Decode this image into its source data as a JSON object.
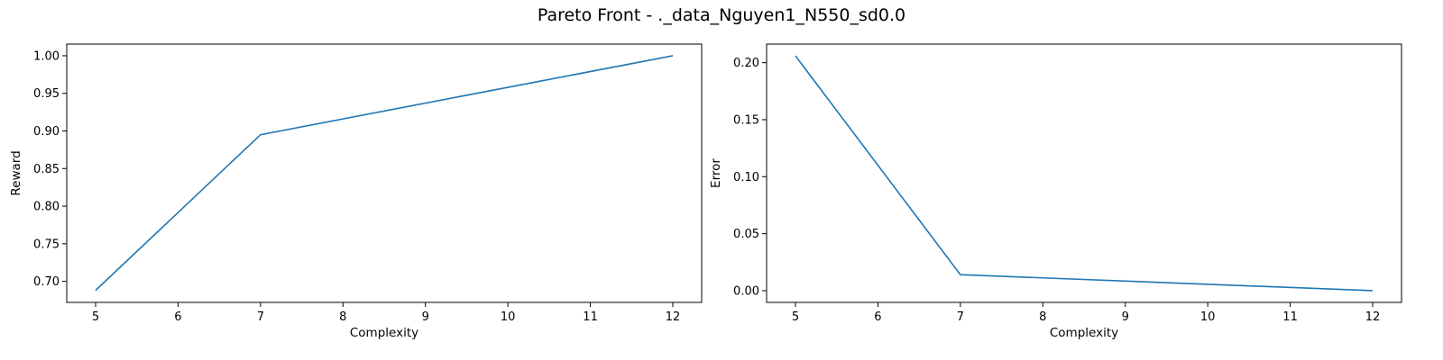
{
  "figure_title": "Pareto Front - ._data_Nguyen1_N550_sd0.0",
  "colors": {
    "line": "#1f77b4",
    "axes": "#000000"
  },
  "chart_data": [
    {
      "type": "line",
      "xlabel": "Complexity",
      "ylabel": "Reward",
      "xlim": [
        4.65,
        12.35
      ],
      "ylim": [
        0.672,
        1.0155
      ],
      "xticks": [
        5,
        6,
        7,
        8,
        9,
        10,
        11,
        12
      ],
      "xtick_labels": [
        "5",
        "6",
        "7",
        "8",
        "9",
        "10",
        "11",
        "12"
      ],
      "yticks": [
        0.7,
        0.75,
        0.8,
        0.85,
        0.9,
        0.95,
        1.0
      ],
      "ytick_labels": [
        "0.70",
        "0.75",
        "0.80",
        "0.85",
        "0.90",
        "0.95",
        "1.00"
      ],
      "grid": false,
      "x": [
        5,
        7,
        12
      ],
      "y": [
        0.688,
        0.895,
        1.0
      ]
    },
    {
      "type": "line",
      "xlabel": "Complexity",
      "ylabel": "Error",
      "xlim": [
        4.65,
        12.35
      ],
      "ylim": [
        -0.0103,
        0.2163
      ],
      "xticks": [
        5,
        6,
        7,
        8,
        9,
        10,
        11,
        12
      ],
      "xtick_labels": [
        "5",
        "6",
        "7",
        "8",
        "9",
        "10",
        "11",
        "12"
      ],
      "yticks": [
        0.0,
        0.05,
        0.1,
        0.15,
        0.2
      ],
      "ytick_labels": [
        "0.00",
        "0.05",
        "0.10",
        "0.15",
        "0.20"
      ],
      "grid": false,
      "x": [
        5,
        7,
        12
      ],
      "y": [
        0.206,
        0.014,
        0.0
      ]
    }
  ]
}
